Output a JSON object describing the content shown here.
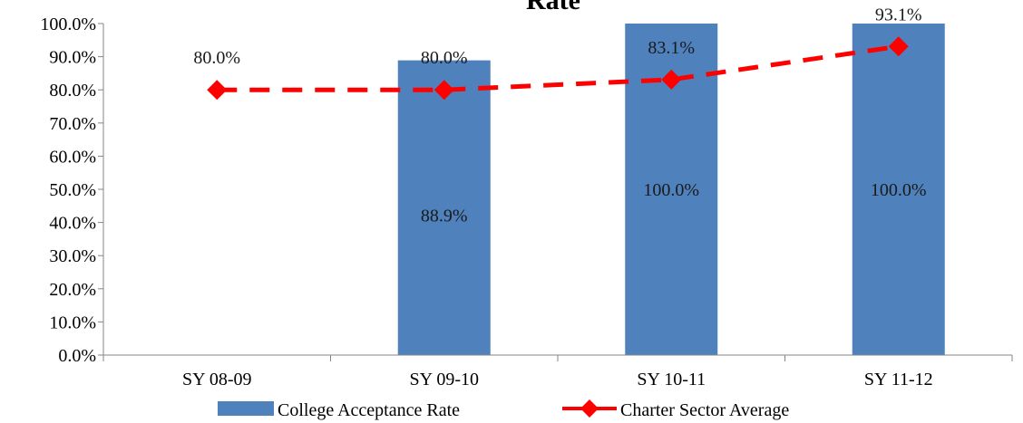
{
  "chart_data": {
    "type": "bar",
    "title": "Rate",
    "categories": [
      "SY 08-09",
      "SY 09-10",
      "SY 10-11",
      "SY 11-12"
    ],
    "series": [
      {
        "name": "College Acceptance Rate",
        "type": "bar",
        "color": "#4F81BD",
        "values": [
          null,
          88.9,
          100.0,
          100.0
        ],
        "labels": [
          "",
          "88.9%",
          "100.0%",
          "100.0%"
        ]
      },
      {
        "name": "Charter Sector Average",
        "type": "line",
        "style": "dashed",
        "marker": "diamond",
        "color": "#FF0000",
        "values": [
          80.0,
          80.0,
          83.1,
          93.1
        ],
        "labels": [
          "80.0%",
          "80.0%",
          "83.1%",
          "93.1%"
        ]
      }
    ],
    "ylim": [
      0,
      100
    ],
    "yticks": [
      "0.0%",
      "10.0%",
      "20.0%",
      "30.0%",
      "40.0%",
      "50.0%",
      "60.0%",
      "70.0%",
      "80.0%",
      "90.0%",
      "100.0%"
    ],
    "xlabel": "",
    "ylabel": "",
    "grid": false,
    "legend": "bottom"
  }
}
